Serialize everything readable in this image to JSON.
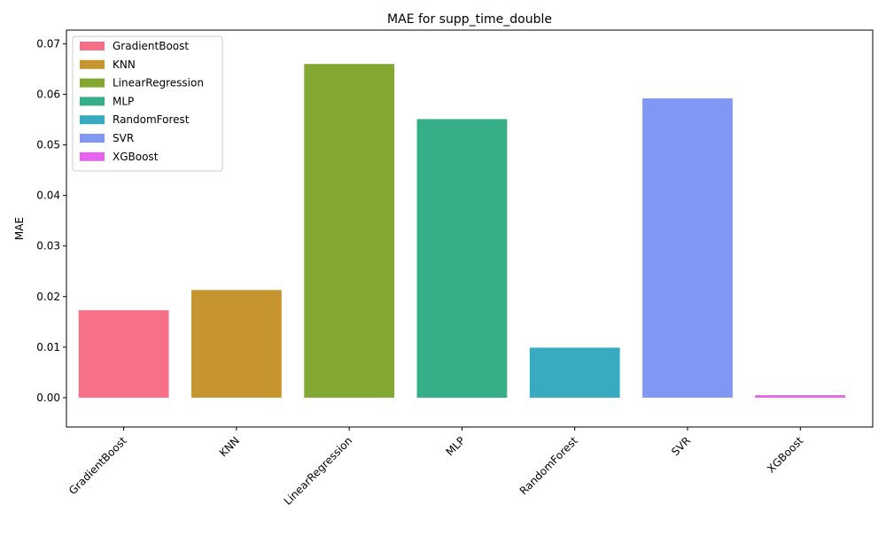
{
  "chart_data": {
    "type": "bar",
    "title": "MAE for supp_time_double",
    "xlabel": "",
    "ylabel": "MAE",
    "categories": [
      "GradientBoost",
      "KNN",
      "LinearRegression",
      "MLP",
      "RandomForest",
      "SVR",
      "XGBoost"
    ],
    "values": [
      0.0173,
      0.0213,
      0.066,
      0.0551,
      0.0099,
      0.0592,
      0.0005
    ],
    "colors": [
      "#f67088",
      "#c6952f",
      "#82a831",
      "#36ae87",
      "#38abc1",
      "#8197f4",
      "#e565ed"
    ],
    "ylim": [
      -0.0058,
      0.0727
    ],
    "yticks": [
      0.0,
      0.01,
      0.02,
      0.03,
      0.04,
      0.05,
      0.06,
      0.07
    ],
    "ytick_labels": [
      "0.00",
      "0.01",
      "0.02",
      "0.03",
      "0.04",
      "0.05",
      "0.06",
      "0.07"
    ],
    "grid": false,
    "legend": {
      "position": "top-left",
      "entries": [
        "GradientBoost",
        "KNN",
        "LinearRegression",
        "MLP",
        "RandomForest",
        "SVR",
        "XGBoost"
      ]
    }
  }
}
